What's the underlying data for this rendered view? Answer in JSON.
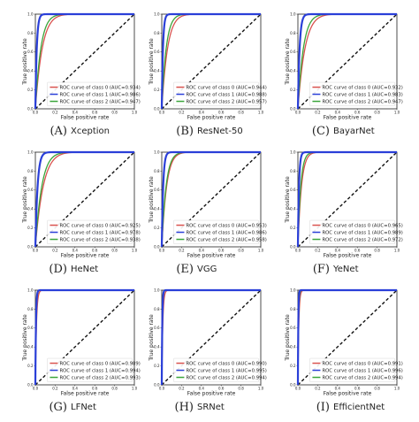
{
  "chart_data": [
    {
      "type": "line",
      "letter": "A",
      "name": "Xception",
      "xlabel": "False positive rate",
      "ylabel": "True positive rate",
      "xlim": [
        0,
        1
      ],
      "ylim": [
        0,
        1
      ],
      "xticks": [
        "0.0",
        "0.2",
        "0.4",
        "0.6",
        "0.8",
        "1.0"
      ],
      "yticks": [
        "0.0",
        "0.2",
        "0.4",
        "0.6",
        "0.8",
        "1.0"
      ],
      "legend": "lower-right",
      "series": [
        {
          "name": "ROC curve of class 0 (AUC=0.934)",
          "color": "#d9534f",
          "auc": 0.934
        },
        {
          "name": "ROC curve of class 1 (AUC=0.986)",
          "color": "#2a3fd8",
          "auc": 0.986
        },
        {
          "name": "ROC curve of class 2 (AUC=0.947)",
          "color": "#3aa53a",
          "auc": 0.947
        }
      ]
    },
    {
      "type": "line",
      "letter": "B",
      "name": "ResNet-50",
      "xlabel": "False positive rate",
      "ylabel": "True positive rate",
      "xlim": [
        0,
        1
      ],
      "ylim": [
        0,
        1
      ],
      "xticks": [
        "0.0",
        "0.2",
        "0.4",
        "0.6",
        "0.8",
        "1.0"
      ],
      "yticks": [
        "0.0",
        "0.2",
        "0.4",
        "0.6",
        "0.8",
        "1.0"
      ],
      "legend": "lower-right",
      "series": [
        {
          "name": "ROC curve of class 0 (AUC=0.944)",
          "color": "#d9534f",
          "auc": 0.944
        },
        {
          "name": "ROC curve of class 1 (AUC=0.988)",
          "color": "#2a3fd8",
          "auc": 0.988
        },
        {
          "name": "ROC curve of class 2 (AUC=0.957)",
          "color": "#3aa53a",
          "auc": 0.957
        }
      ]
    },
    {
      "type": "line",
      "letter": "C",
      "name": "BayarNet",
      "xlabel": "False positive rate",
      "ylabel": "True positive rate",
      "xlim": [
        0,
        1
      ],
      "ylim": [
        0,
        1
      ],
      "xticks": [
        "0.0",
        "0.2",
        "0.4",
        "0.6",
        "0.8",
        "1.0"
      ],
      "yticks": [
        "0.0",
        "0.2",
        "0.4",
        "0.6",
        "0.8",
        "1.0"
      ],
      "legend": "lower-right",
      "series": [
        {
          "name": "ROC curve of class 0 (AUC=0.932)",
          "color": "#d9534f",
          "auc": 0.932
        },
        {
          "name": "ROC curve of class 1 (AUC=0.983)",
          "color": "#2a3fd8",
          "auc": 0.983
        },
        {
          "name": "ROC curve of class 2 (AUC=0.947)",
          "color": "#3aa53a",
          "auc": 0.947
        }
      ]
    },
    {
      "type": "line",
      "letter": "D",
      "name": "HeNet",
      "xlabel": "False positive rate",
      "ylabel": "True positive rate",
      "xlim": [
        0,
        1
      ],
      "ylim": [
        0,
        1
      ],
      "xticks": [
        "0.0",
        "0.2",
        "0.4",
        "0.6",
        "0.8",
        "1.0"
      ],
      "yticks": [
        "0.0",
        "0.2",
        "0.4",
        "0.6",
        "0.8",
        "1.0"
      ],
      "legend": "lower-right",
      "series": [
        {
          "name": "ROC curve of class 0 (AUC=0.925)",
          "color": "#d9534f",
          "auc": 0.925
        },
        {
          "name": "ROC curve of class 1 (AUC=0.978)",
          "color": "#2a3fd8",
          "auc": 0.978
        },
        {
          "name": "ROC curve of class 2 (AUC=0.938)",
          "color": "#3aa53a",
          "auc": 0.938
        }
      ]
    },
    {
      "type": "line",
      "letter": "E",
      "name": "VGG",
      "xlabel": "False positive rate",
      "ylabel": "True positive rate",
      "xlim": [
        0,
        1
      ],
      "ylim": [
        0,
        1
      ],
      "xticks": [
        "0.0",
        "0.2",
        "0.4",
        "0.6",
        "0.8",
        "1.0"
      ],
      "yticks": [
        "0.0",
        "0.2",
        "0.4",
        "0.6",
        "0.8",
        "1.0"
      ],
      "legend": "lower-right",
      "series": [
        {
          "name": "ROC curve of class 0 (AUC=0.953)",
          "color": "#d9534f",
          "auc": 0.953
        },
        {
          "name": "ROC curve of class 1 (AUC=0.986)",
          "color": "#2a3fd8",
          "auc": 0.986
        },
        {
          "name": "ROC curve of class 2 (AUC=0.958)",
          "color": "#3aa53a",
          "auc": 0.958
        }
      ]
    },
    {
      "type": "line",
      "letter": "F",
      "name": "YeNet",
      "xlabel": "False positive rate",
      "ylabel": "True positive rate",
      "xlim": [
        0,
        1
      ],
      "ylim": [
        0,
        1
      ],
      "xticks": [
        "0.0",
        "0.2",
        "0.4",
        "0.6",
        "0.8",
        "1.0"
      ],
      "yticks": [
        "0.0",
        "0.2",
        "0.4",
        "0.6",
        "0.8",
        "1.0"
      ],
      "legend": "lower-right",
      "series": [
        {
          "name": "ROC curve of class 0 (AUC=0.965)",
          "color": "#d9534f",
          "auc": 0.965
        },
        {
          "name": "ROC curve of class 1 (AUC=0.989)",
          "color": "#2a3fd8",
          "auc": 0.989
        },
        {
          "name": "ROC curve of class 2 (AUC=0.972)",
          "color": "#3aa53a",
          "auc": 0.972
        }
      ]
    },
    {
      "type": "line",
      "letter": "G",
      "name": "LFNet",
      "xlabel": "False positive rate",
      "ylabel": "True positive rate",
      "xlim": [
        0,
        1
      ],
      "ylim": [
        0,
        1
      ],
      "xticks": [
        "0.0",
        "0.2",
        "0.4",
        "0.6",
        "0.8",
        "1.0"
      ],
      "yticks": [
        "0.0",
        "0.2",
        "0.4",
        "0.6",
        "0.8",
        "1.0"
      ],
      "legend": "lower-right",
      "series": [
        {
          "name": "ROC curve of class 0 (AUC=0.989)",
          "color": "#d9534f",
          "auc": 0.989
        },
        {
          "name": "ROC curve of class 1 (AUC=0.994)",
          "color": "#2a3fd8",
          "auc": 0.994
        },
        {
          "name": "ROC curve of class 2 (AUC=0.993)",
          "color": "#3aa53a",
          "auc": 0.993
        }
      ]
    },
    {
      "type": "line",
      "letter": "H",
      "name": "SRNet",
      "xlabel": "False positive rate",
      "ylabel": "True positive rate",
      "xlim": [
        0,
        1
      ],
      "ylim": [
        0,
        1
      ],
      "xticks": [
        "0.0",
        "0.2",
        "0.4",
        "0.6",
        "0.8",
        "1.0"
      ],
      "yticks": [
        "0.0",
        "0.2",
        "0.4",
        "0.6",
        "0.8",
        "1.0"
      ],
      "legend": "lower-right",
      "series": [
        {
          "name": "ROC curve of class 0 (AUC=0.990)",
          "color": "#d9534f",
          "auc": 0.99
        },
        {
          "name": "ROC curve of class 1 (AUC=0.995)",
          "color": "#2a3fd8",
          "auc": 0.995
        },
        {
          "name": "ROC curve of class 2 (AUC=0.994)",
          "color": "#3aa53a",
          "auc": 0.994
        }
      ]
    },
    {
      "type": "line",
      "letter": "I",
      "name": "EfficientNet",
      "xlabel": "False positive rate",
      "ylabel": "True positive rate",
      "xlim": [
        0,
        1
      ],
      "ylim": [
        0,
        1
      ],
      "xticks": [
        "0.0",
        "0.2",
        "0.4",
        "0.6",
        "0.8",
        "1.0"
      ],
      "yticks": [
        "0.0",
        "0.2",
        "0.4",
        "0.6",
        "0.8",
        "1.0"
      ],
      "legend": "lower-right",
      "series": [
        {
          "name": "ROC curve of class 0 (AUC=0.991)",
          "color": "#d9534f",
          "auc": 0.991
        },
        {
          "name": "ROC curve of class 1 (AUC=0.996)",
          "color": "#2a3fd8",
          "auc": 0.996
        },
        {
          "name": "ROC curve of class 2 (AUC=0.994)",
          "color": "#3aa53a",
          "auc": 0.994
        }
      ]
    }
  ]
}
